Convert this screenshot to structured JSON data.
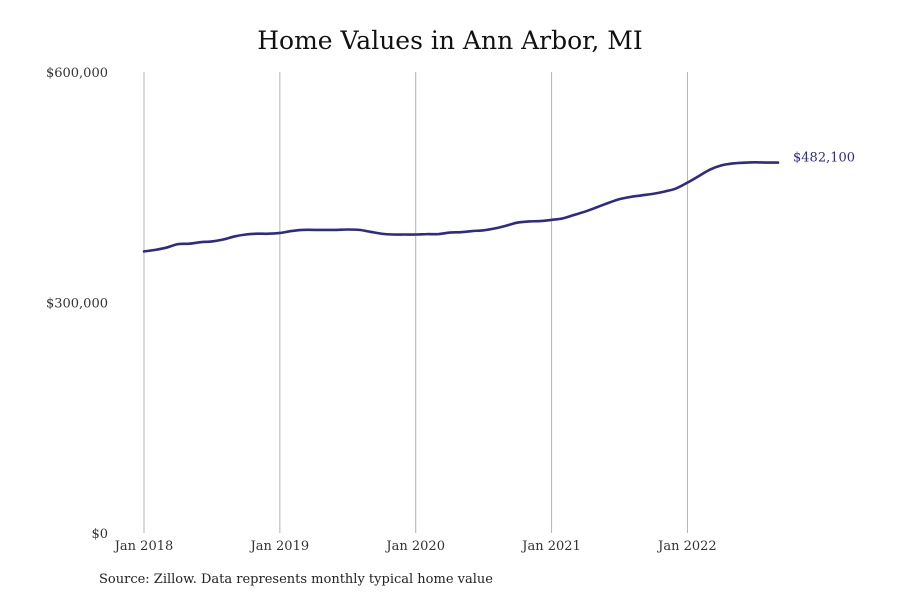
{
  "title": "Home Values in Ann Arbor, MI",
  "source": "Source: Zillow. Data represents monthly typical home value",
  "chart_data": {
    "type": "line",
    "title": "Home Values in Ann Arbor, MI",
    "xlabel": "",
    "ylabel": "",
    "ylim": [
      0,
      600000
    ],
    "xlim": [
      "2018-01",
      "2022-09"
    ],
    "grid": {
      "vertical": true,
      "horizontal": false
    },
    "y_ticks": [
      {
        "value": 0,
        "label": "$0"
      },
      {
        "value": 300000,
        "label": "$300,000"
      },
      {
        "value": 600000,
        "label": "$600,000"
      }
    ],
    "x_ticks": [
      {
        "value": "2018-01",
        "label": "Jan 2018"
      },
      {
        "value": "2019-01",
        "label": "Jan 2019"
      },
      {
        "value": "2020-01",
        "label": "Jan 2020"
      },
      {
        "value": "2021-01",
        "label": "Jan 2021"
      },
      {
        "value": "2022-01",
        "label": "Jan 2022"
      }
    ],
    "end_label": "$482,100",
    "line_color": "#2e2a85",
    "x": [
      "2018-01",
      "2018-02",
      "2018-03",
      "2018-04",
      "2018-05",
      "2018-06",
      "2018-07",
      "2018-08",
      "2018-09",
      "2018-10",
      "2018-11",
      "2018-12",
      "2019-01",
      "2019-02",
      "2019-03",
      "2019-04",
      "2019-05",
      "2019-06",
      "2019-07",
      "2019-08",
      "2019-09",
      "2019-10",
      "2019-11",
      "2019-12",
      "2020-01",
      "2020-02",
      "2020-03",
      "2020-04",
      "2020-05",
      "2020-06",
      "2020-07",
      "2020-08",
      "2020-09",
      "2020-10",
      "2020-11",
      "2020-12",
      "2021-01",
      "2021-02",
      "2021-03",
      "2021-04",
      "2021-05",
      "2021-06",
      "2021-07",
      "2021-08",
      "2021-09",
      "2021-10",
      "2021-11",
      "2021-12",
      "2022-01",
      "2022-02",
      "2022-03",
      "2022-04",
      "2022-05",
      "2022-06",
      "2022-07",
      "2022-08",
      "2022-09"
    ],
    "values": [
      366500,
      368500,
      371500,
      376000,
      376500,
      378500,
      379500,
      382000,
      386000,
      388500,
      389500,
      389500,
      390500,
      393000,
      394500,
      394500,
      394500,
      394500,
      395000,
      394500,
      392000,
      389500,
      388500,
      388500,
      388500,
      389000,
      389000,
      391000,
      391500,
      393000,
      394000,
      396500,
      400000,
      404000,
      405500,
      406000,
      407500,
      409500,
      414000,
      418500,
      424000,
      429500,
      434500,
      437500,
      439500,
      441500,
      444500,
      448500,
      456000,
      464500,
      473000,
      478500,
      481000,
      482000,
      482500,
      482100,
      482100
    ]
  }
}
